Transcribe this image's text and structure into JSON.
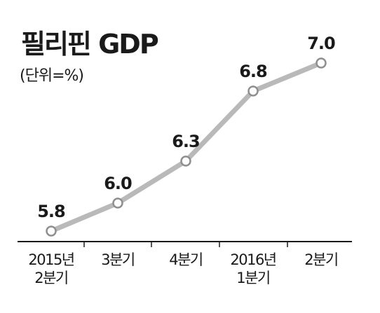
{
  "chart_data": {
    "type": "line",
    "title": "필리핀 GDP",
    "subtitle": "(단위=%)",
    "categories": [
      [
        "2015년",
        "2분기"
      ],
      [
        "3분기"
      ],
      [
        "4분기"
      ],
      [
        "2016년",
        "1분기"
      ],
      [
        "2분기"
      ]
    ],
    "values": [
      5.8,
      6.0,
      6.3,
      6.8,
      7.0
    ],
    "data_labels": [
      "5.8",
      "6.0",
      "6.3",
      "6.8",
      "7.0"
    ],
    "ylim": [
      5.6,
      7.2
    ],
    "grid": false,
    "legend": "none",
    "colors": {
      "line": "#b9b9b9",
      "marker_fill": "#ffffff",
      "marker_stroke": "#8f8f8f",
      "axis": "#1a1a1a",
      "text": "#1a1a1a"
    }
  }
}
